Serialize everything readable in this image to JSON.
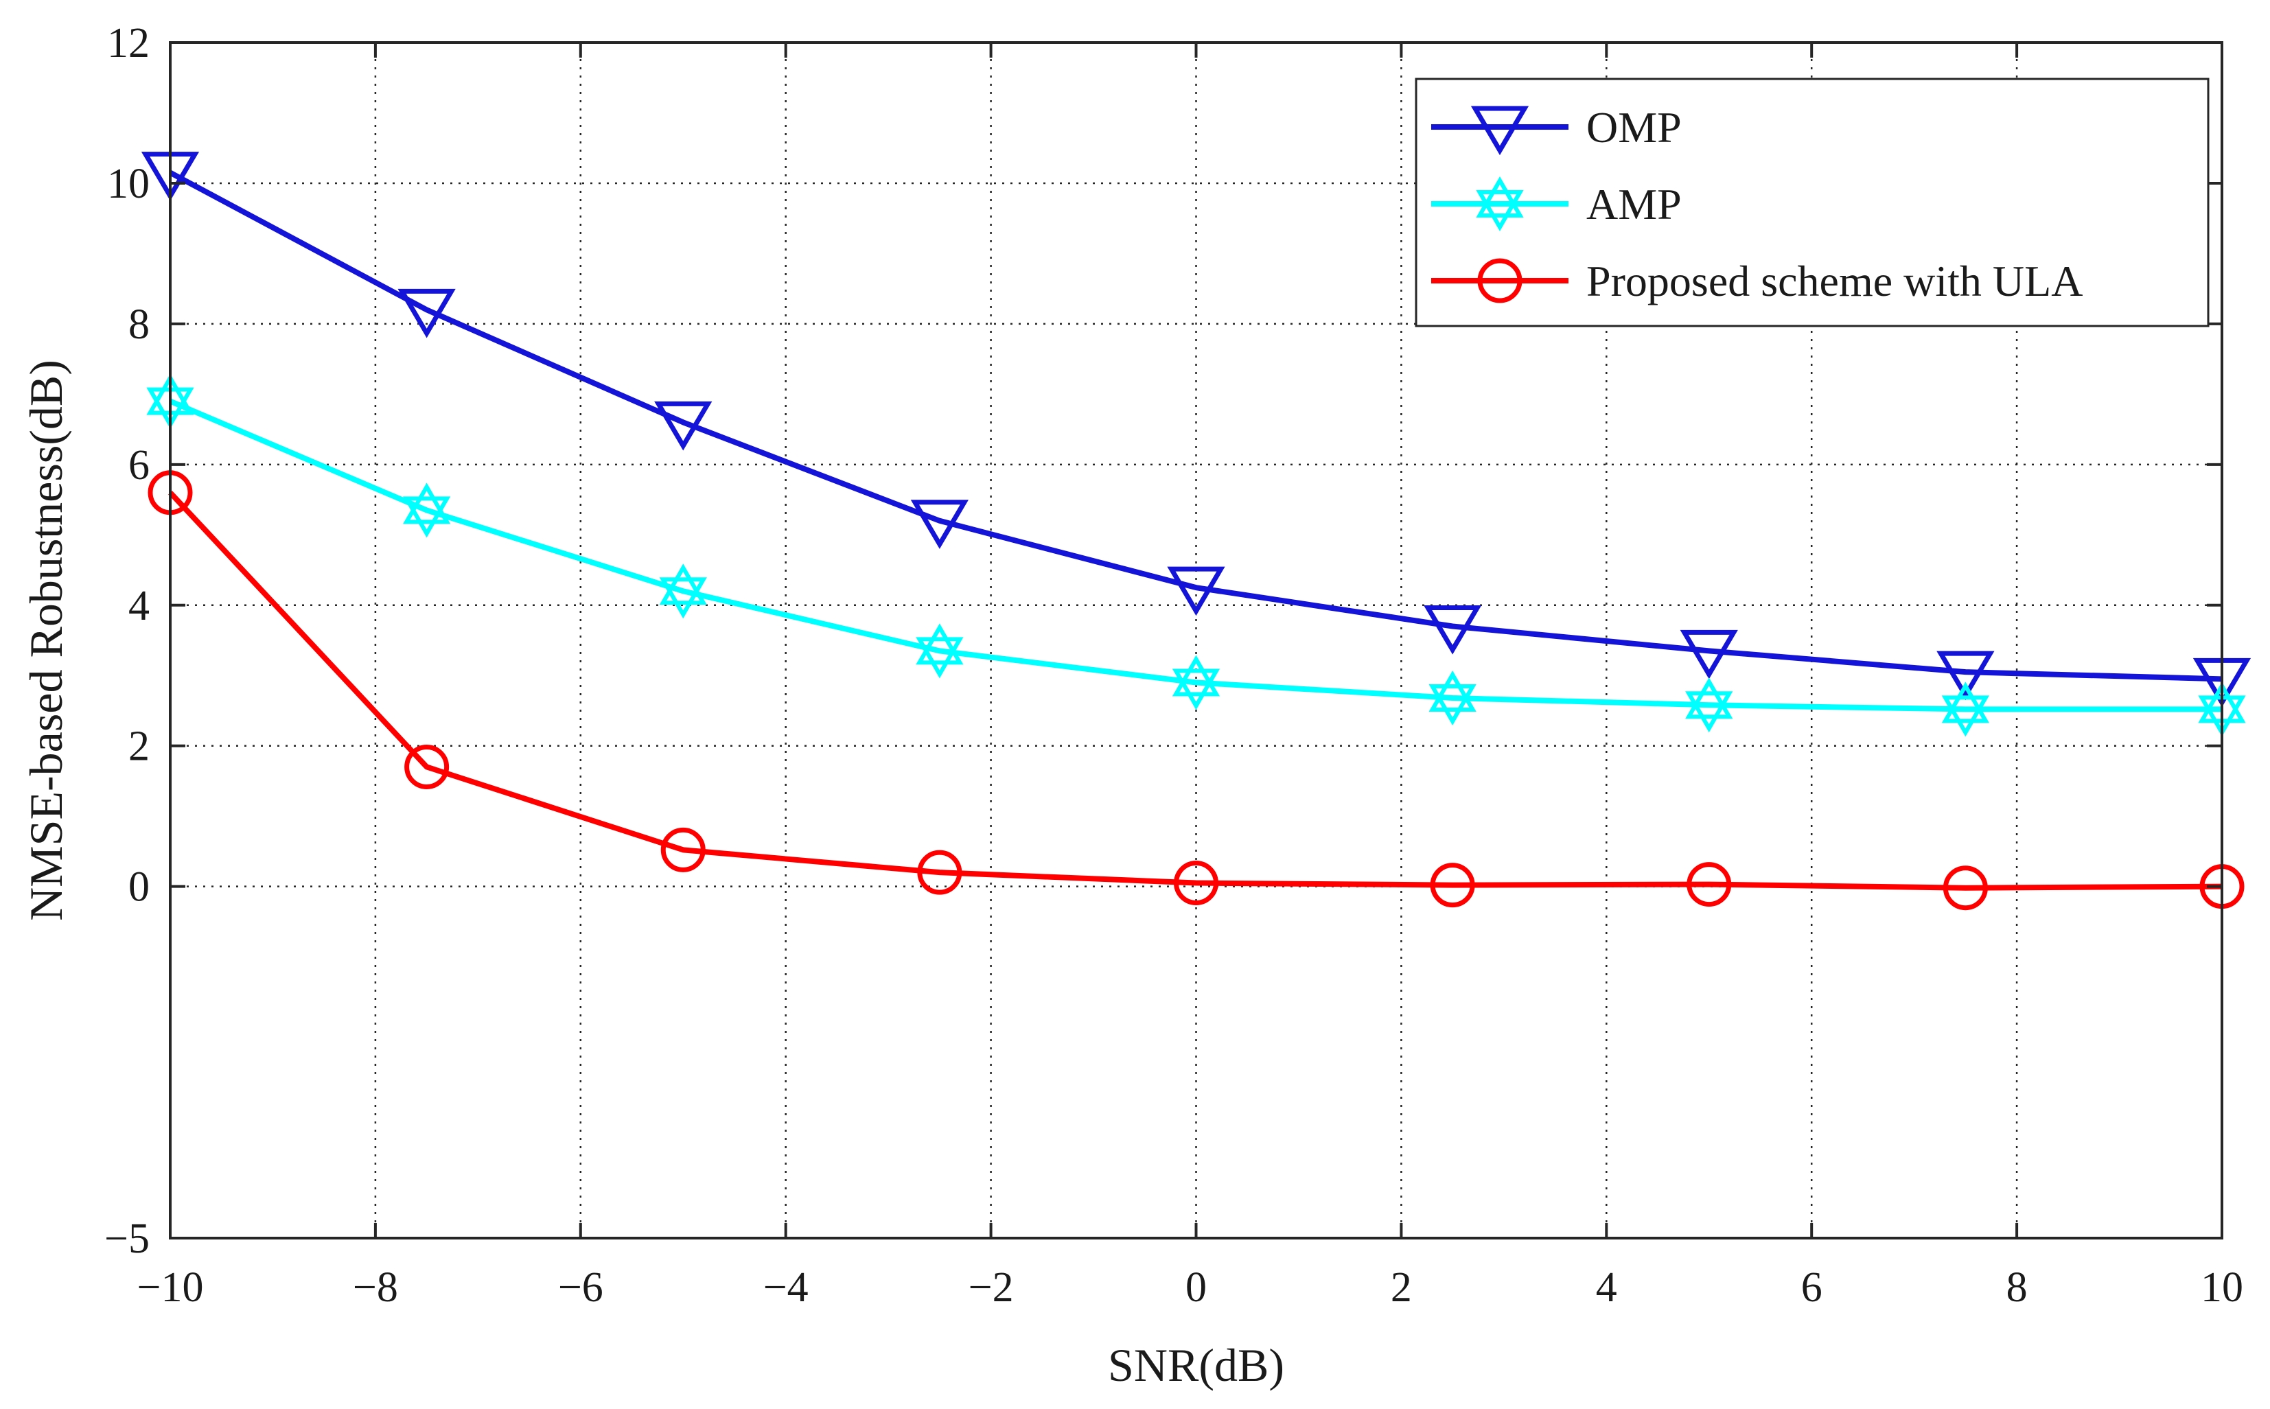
{
  "chart_data": {
    "type": "line",
    "title": "",
    "xlabel": "SNR(dB)",
    "ylabel": "NMSE-based Robustness(dB)",
    "xlim": [
      -10,
      10
    ],
    "ylim": [
      -5,
      12
    ],
    "xticks": [
      -10,
      -8,
      -6,
      -4,
      -2,
      0,
      2,
      4,
      6,
      8,
      10
    ],
    "yticks": [
      -5,
      0,
      2,
      4,
      6,
      8,
      10,
      12
    ],
    "xtick_labels": [
      "−10",
      "−8",
      "−6",
      "−4",
      "−2",
      "0",
      "2",
      "4",
      "6",
      "8",
      "10"
    ],
    "ytick_labels": [
      "−5",
      "0",
      "2",
      "4",
      "6",
      "8",
      "10",
      "12"
    ],
    "grid": true,
    "legend_position": "top-right",
    "x": [
      -10,
      -7.5,
      -5,
      -2.5,
      0,
      2.5,
      5,
      7.5,
      10
    ],
    "series": [
      {
        "name": "OMP",
        "color": "#1414d8",
        "marker": "triangle-down",
        "values": [
          10.15,
          8.2,
          6.6,
          5.2,
          4.25,
          3.7,
          3.35,
          3.05,
          2.95
        ]
      },
      {
        "name": "AMP",
        "color": "#00ffff",
        "marker": "hexagram",
        "values": [
          6.9,
          5.35,
          4.2,
          3.35,
          2.9,
          2.68,
          2.58,
          2.52,
          2.52
        ]
      },
      {
        "name": "Proposed scheme with ULA",
        "color": "#ff0000",
        "marker": "circle",
        "values": [
          5.6,
          1.7,
          0.52,
          0.2,
          0.05,
          0.02,
          0.03,
          -0.02,
          0.0
        ]
      }
    ]
  }
}
